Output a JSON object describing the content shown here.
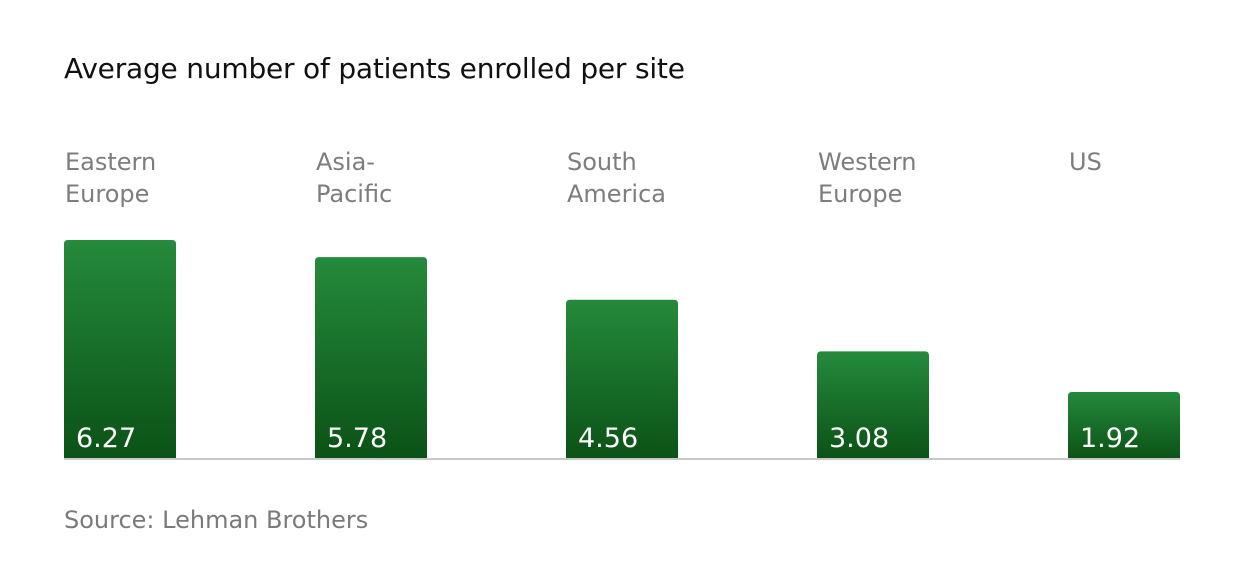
{
  "chart_data": {
    "type": "bar",
    "title": "Average number of patients enrolled per site",
    "categories": [
      [
        "Eastern",
        "Europe"
      ],
      [
        "Asia-",
        "Pacific"
      ],
      [
        "South",
        "America"
      ],
      [
        "Western",
        "Europe"
      ],
      [
        "US"
      ]
    ],
    "values": [
      6.27,
      5.78,
      4.56,
      3.08,
      1.92
    ],
    "value_labels": [
      "6.27",
      "5.78",
      "4.56",
      "3.08",
      "1.92"
    ],
    "source": "Source: Lehman Brothers",
    "ylim": [
      0,
      6.27
    ],
    "grid": false,
    "legend": "none",
    "colors": {
      "bar_top": "#258a3c",
      "bar_bottom": "#0b5216",
      "baseline": "#c8c8c8"
    }
  }
}
